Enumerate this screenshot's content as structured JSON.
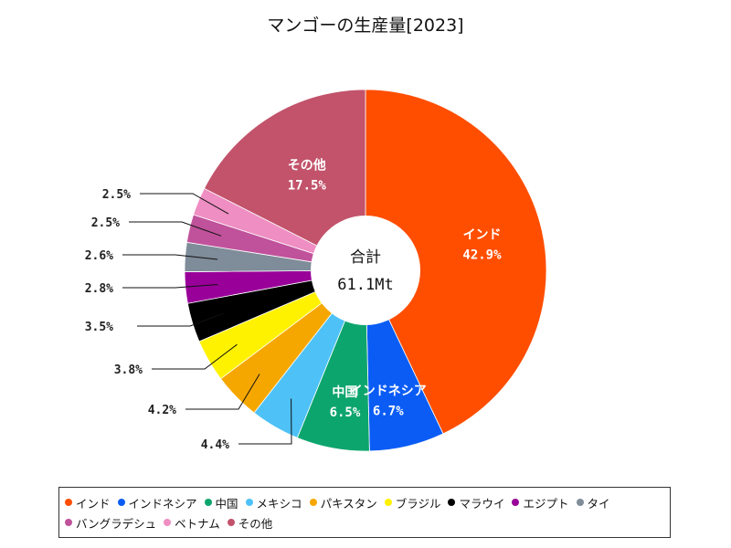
{
  "chart_data": {
    "type": "pie",
    "style": "donut",
    "title": "マンゴーの生産量[2023]",
    "center_label": "合計",
    "center_value": "61.1Mt",
    "slices": [
      {
        "name": "インド",
        "value": 42.9,
        "label": "42.9%",
        "color": "#ff4e00"
      },
      {
        "name": "インドネシア",
        "value": 6.7,
        "label": "6.7%",
        "color": "#0a5cf5"
      },
      {
        "name": "中国",
        "value": 6.5,
        "label": "6.5%",
        "color": "#0da56e"
      },
      {
        "name": "メキシコ",
        "value": 4.4,
        "label": "4.4%",
        "color": "#4ec2f7"
      },
      {
        "name": "パキスタン",
        "value": 4.2,
        "label": "4.2%",
        "color": "#f5a700"
      },
      {
        "name": "ブラジル",
        "value": 3.8,
        "label": "3.8%",
        "color": "#fff200"
      },
      {
        "name": "マラウイ",
        "value": 3.5,
        "label": "3.5%",
        "color": "#000000"
      },
      {
        "name": "エジプト",
        "value": 2.8,
        "label": "2.8%",
        "color": "#990099"
      },
      {
        "name": "タイ",
        "value": 2.6,
        "label": "2.6%",
        "color": "#7f8c99"
      },
      {
        "name": "バングラデシュ",
        "value": 2.5,
        "label": "2.5%",
        "color": "#c0529b"
      },
      {
        "name": "ベトナム",
        "value": 2.5,
        "label": "2.5%",
        "color": "#ef8ec3"
      },
      {
        "name": "その他",
        "value": 17.5,
        "label": "17.5%",
        "color": "#c2536b"
      }
    ],
    "inside_labels": [
      "インド",
      "インドネシア",
      "中国",
      "その他"
    ],
    "legend_position": "bottom"
  }
}
